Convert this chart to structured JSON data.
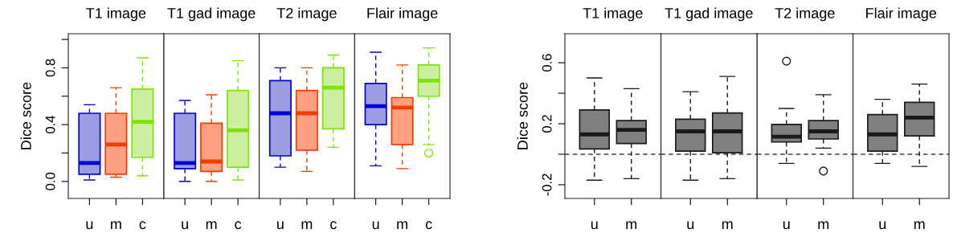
{
  "chart_data": [
    {
      "type": "box",
      "title": "T1 image",
      "ylabel": "Dice score",
      "categories": [
        "u",
        "m",
        "c"
      ],
      "colors": [
        "#9c9ce0",
        "#ffa080",
        "#ccf0a0"
      ],
      "ylim": [
        -0.12,
        1.04
      ],
      "yticks": [
        {
          "value": 0,
          "label": "0.0"
        },
        {
          "value": 0.2,
          "label": null
        },
        0.4,
        {
          "value": 0.6,
          "label": null
        },
        0.8,
        {
          "value": 1.0,
          "label": null
        }
      ],
      "line_style": "dashed",
      "marker": "circle",
      "grid": false,
      "boxes": [
        {
          "low": 0.01,
          "q1": 0.05,
          "median": 0.13,
          "q3": 0.48,
          "high": 0.54
        },
        {
          "low": 0.03,
          "q1": 0.05,
          "median": 0.26,
          "q3": 0.48,
          "high": 0.66
        },
        {
          "low": 0.04,
          "q1": 0.17,
          "median": 0.42,
          "q3": 0.65,
          "high": 0.87
        }
      ]
    },
    {
      "type": "box",
      "title": "T1 gad image",
      "categories": [
        "u",
        "m",
        "c"
      ],
      "colors": [
        "#9c9ce0",
        "#ffa080",
        "#ccf0a0"
      ],
      "ylim": [
        -0.12,
        1.04
      ],
      "tick_labels": "x",
      "line_style": "dashed",
      "marker": "circle",
      "grid": false,
      "boxes": [
        {
          "low": 0.0,
          "q1": 0.09,
          "median": 0.13,
          "q3": 0.48,
          "high": 0.57
        },
        {
          "low": 0.0,
          "q1": 0.07,
          "median": 0.14,
          "q3": 0.41,
          "high": 0.61
        },
        {
          "low": 0.01,
          "q1": 0.1,
          "median": 0.36,
          "q3": 0.64,
          "high": 0.85
        }
      ]
    },
    {
      "type": "box",
      "title": "T2 image",
      "categories": [
        "u",
        "m",
        "c"
      ],
      "colors": [
        "#9c9ce0",
        "#ffa080",
        "#ccf0a0"
      ],
      "ylim": [
        -0.12,
        1.04
      ],
      "tick_labels": "x",
      "line_style": "dashed",
      "marker": "circle",
      "grid": false,
      "boxes": [
        {
          "low": 0.1,
          "q1": 0.18,
          "median": 0.48,
          "q3": 0.71,
          "high": 0.8
        },
        {
          "low": 0.07,
          "q1": 0.22,
          "median": 0.48,
          "q3": 0.64,
          "high": 0.8
        },
        {
          "low": 0.24,
          "q1": 0.37,
          "median": 0.66,
          "q3": 0.8,
          "high": 0.89
        }
      ]
    },
    {
      "type": "box",
      "title": "Flair image",
      "categories": [
        "u",
        "m",
        "c"
      ],
      "colors": [
        "#9c9ce0",
        "#ffa080",
        "#ccf0a0"
      ],
      "ylim": [
        -0.12,
        1.04
      ],
      "tick_labels": "x",
      "line_style": "dashed",
      "marker": "circle",
      "grid": false,
      "boxes": [
        {
          "low": 0.11,
          "q1": 0.4,
          "median": 0.53,
          "q3": 0.69,
          "high": 0.91
        },
        {
          "low": 0.09,
          "q1": 0.26,
          "median": 0.52,
          "q3": 0.59,
          "high": 0.82
        },
        {
          "low": 0.26,
          "q1": 0.6,
          "median": 0.71,
          "q3": 0.82,
          "high": 0.94,
          "outliers": [
            0.2
          ]
        }
      ]
    },
    {
      "type": "box",
      "title": "T1 image",
      "ylabel": "Dice score",
      "categories": [
        "u",
        "m"
      ],
      "colors": [
        "#808080",
        "#808080"
      ],
      "ylim": [
        -0.29,
        0.79
      ],
      "yticks": [
        -0.2,
        {
          "value": 0,
          "label": null
        },
        0.2,
        {
          "value": 0.4,
          "label": null
        },
        0.6
      ],
      "line_style": "dashed",
      "marker": "circle",
      "grid": false,
      "ref_lines": [
        {
          "axis": "y",
          "value": 0,
          "line_style": "dashed",
          "color": "#404040"
        }
      ],
      "boxes": [
        {
          "low": -0.17,
          "q1": 0.035,
          "median": 0.13,
          "q3": 0.29,
          "high": 0.5
        },
        {
          "low": -0.16,
          "q1": 0.07,
          "median": 0.16,
          "q3": 0.22,
          "high": 0.43
        }
      ]
    },
    {
      "type": "box",
      "title": "T1 gad image",
      "categories": [
        "u",
        "m"
      ],
      "colors": [
        "#808080",
        "#808080"
      ],
      "ylim": [
        -0.29,
        0.79
      ],
      "tick_labels": "x",
      "line_style": "dashed",
      "marker": "circle",
      "grid": false,
      "ref_lines": [
        {
          "axis": "y",
          "value": 0,
          "line_style": "dashed",
          "color": "#404040"
        }
      ],
      "boxes": [
        {
          "low": -0.17,
          "q1": 0.02,
          "median": 0.15,
          "q3": 0.23,
          "high": 0.41
        },
        {
          "low": -0.16,
          "q1": 0.01,
          "median": 0.15,
          "q3": 0.27,
          "high": 0.51
        }
      ]
    },
    {
      "type": "box",
      "title": "T2 image",
      "categories": [
        "u",
        "m"
      ],
      "colors": [
        "#808080",
        "#808080"
      ],
      "ylim": [
        -0.29,
        0.79
      ],
      "tick_labels": "x",
      "line_style": "dashed",
      "marker": "circle",
      "grid": false,
      "ref_lines": [
        {
          "axis": "y",
          "value": 0,
          "line_style": "dashed",
          "color": "#404040"
        }
      ],
      "boxes": [
        {
          "low": -0.06,
          "q1": 0.08,
          "median": 0.115,
          "q3": 0.195,
          "high": 0.3,
          "outliers": [
            0.61
          ]
        },
        {
          "low": 0.04,
          "q1": 0.1,
          "median": 0.15,
          "q3": 0.22,
          "high": 0.39,
          "outliers": [
            -0.11
          ]
        }
      ]
    },
    {
      "type": "box",
      "title": "Flair image",
      "categories": [
        "u",
        "m"
      ],
      "colors": [
        "#808080",
        "#808080"
      ],
      "ylim": [
        -0.29,
        0.79
      ],
      "tick_labels": "x",
      "line_style": "dashed",
      "marker": "circle",
      "grid": false,
      "ref_lines": [
        {
          "axis": "y",
          "value": 0,
          "line_style": "dashed",
          "color": "#404040"
        }
      ],
      "boxes": [
        {
          "low": -0.06,
          "q1": 0.02,
          "median": 0.13,
          "q3": 0.26,
          "high": 0.36
        },
        {
          "low": -0.08,
          "q1": 0.12,
          "median": 0.24,
          "q3": 0.34,
          "high": 0.46
        }
      ]
    }
  ]
}
